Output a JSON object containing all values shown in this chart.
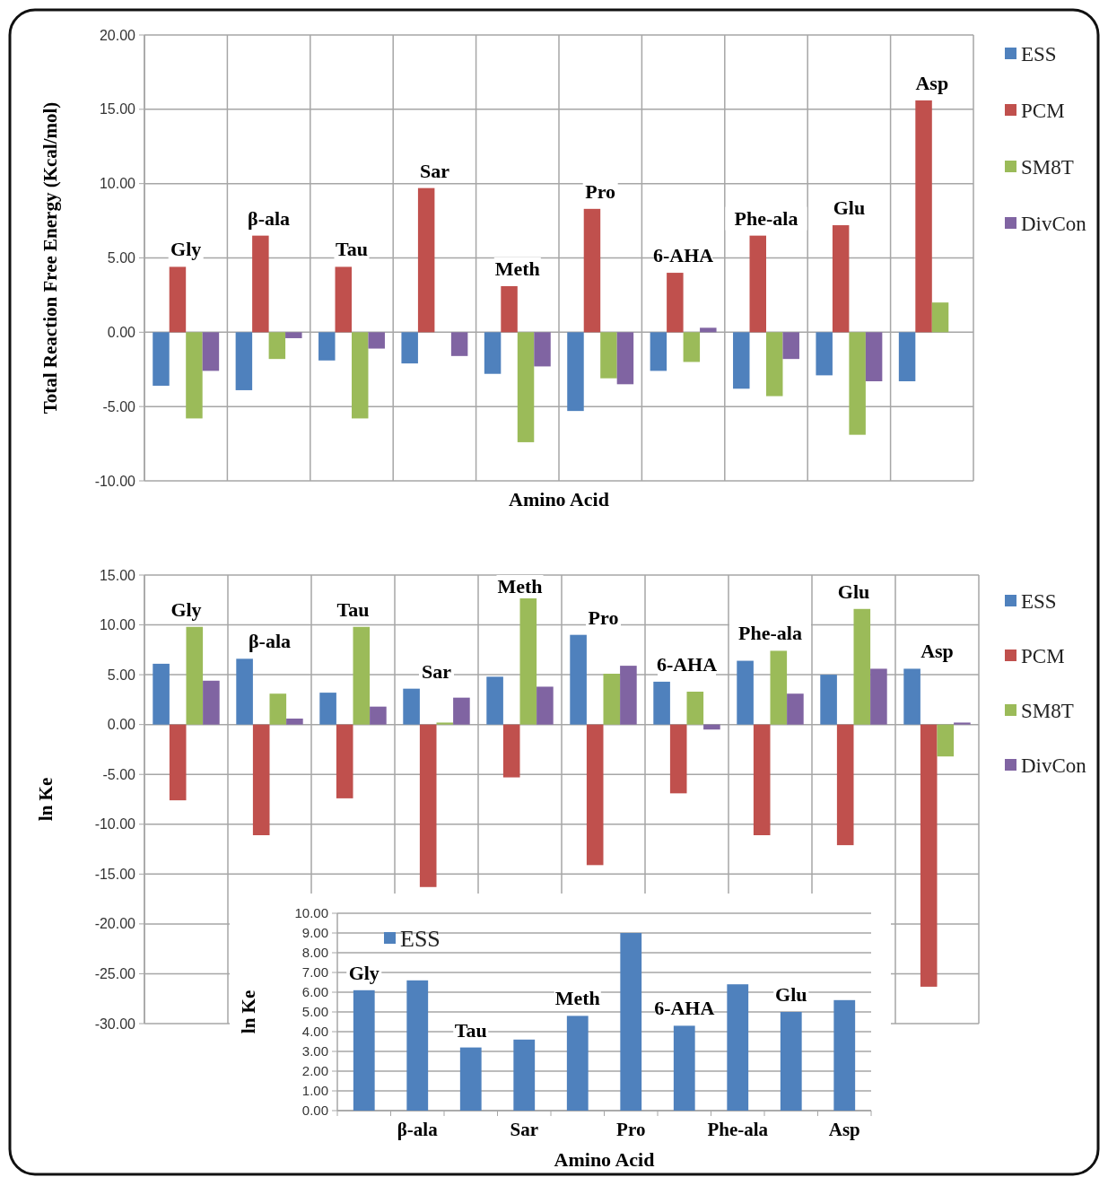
{
  "chart_data": [
    {
      "type": "bar",
      "xlabel": "Amino Acid",
      "ylabel": "Total Reaction Free Energy (Kcal/mol)",
      "categories": [
        "Gly",
        "β-ala",
        "Tau",
        "Sar",
        "Meth",
        "Pro",
        "6-AHA",
        "Phe-ala",
        "Glu",
        "Asp"
      ],
      "series": [
        {
          "name": "ESS",
          "color": "#4f81bd",
          "values": [
            -3.6,
            -3.9,
            -1.9,
            -2.1,
            -2.8,
            -5.3,
            -2.6,
            -3.8,
            -2.9,
            -3.3
          ]
        },
        {
          "name": "PCM",
          "color": "#c0504d",
          "values": [
            4.4,
            6.5,
            4.4,
            9.7,
            3.1,
            8.3,
            4.0,
            6.5,
            7.2,
            15.6
          ]
        },
        {
          "name": "SM8T",
          "color": "#9bbb59",
          "values": [
            -5.8,
            -1.8,
            -5.8,
            0,
            -7.4,
            -3.1,
            -2.0,
            -4.3,
            -6.9,
            2.0
          ]
        },
        {
          "name": "DivCon",
          "color": "#8064a2",
          "values": [
            -2.6,
            -0.4,
            -1.1,
            -1.6,
            -2.3,
            -3.5,
            0.3,
            -1.8,
            -3.3,
            0
          ]
        }
      ],
      "ylim": [
        -10,
        20
      ],
      "yticks": [
        {
          "value": -10,
          "label": "-10.00"
        },
        {
          "value": -5,
          "label": "-5.00"
        },
        {
          "value": 0,
          "label": "0.00"
        },
        {
          "value": 5,
          "label": "5.00"
        },
        {
          "value": 10,
          "label": "10.00"
        },
        {
          "value": 15,
          "label": "15.00"
        },
        {
          "value": 20,
          "label": "20.00"
        }
      ],
      "grid": true,
      "legend": "right"
    },
    {
      "type": "bar",
      "ylabel": "ln Ke",
      "categories": [
        "Gly",
        "β-ala",
        "Tau",
        "Sar",
        "Meth",
        "Pro",
        "6-AHA",
        "Phe-ala",
        "Glu",
        "Asp"
      ],
      "series": [
        {
          "name": "ESS",
          "color": "#4f81bd",
          "values": [
            6.1,
            6.6,
            3.2,
            3.6,
            4.8,
            9.0,
            4.3,
            6.4,
            5.0,
            5.6
          ]
        },
        {
          "name": "PCM",
          "color": "#c0504d",
          "values": [
            -7.6,
            -11.1,
            -7.4,
            -16.3,
            -5.3,
            -14.1,
            -6.9,
            -11.1,
            -12.1,
            -26.3
          ]
        },
        {
          "name": "SM8T",
          "color": "#9bbb59",
          "values": [
            9.8,
            3.1,
            9.8,
            0.2,
            12.7,
            5.1,
            3.3,
            7.4,
            11.6,
            -3.2
          ]
        },
        {
          "name": "DivCon",
          "color": "#8064a2",
          "values": [
            4.4,
            0.6,
            1.8,
            2.7,
            3.8,
            5.9,
            -0.5,
            3.1,
            5.6,
            0.2
          ]
        }
      ],
      "ylim": [
        -30,
        15
      ],
      "yticks": [
        {
          "value": -30,
          "label": "-30.00"
        },
        {
          "value": -25,
          "label": "-25.00"
        },
        {
          "value": -20,
          "label": "-20.00"
        },
        {
          "value": -15,
          "label": "-15.00"
        },
        {
          "value": -10,
          "label": "-10.00"
        },
        {
          "value": -5,
          "label": "-5.00"
        },
        {
          "value": 0,
          "label": "0.00"
        },
        {
          "value": 5,
          "label": "5.00"
        },
        {
          "value": 10,
          "label": "10.00"
        },
        {
          "value": 15,
          "label": "15.00"
        }
      ],
      "grid": true,
      "legend": "right"
    },
    {
      "type": "bar",
      "xlabel": "Amino Acid",
      "ylabel": "ln Ke",
      "categories": [
        "Gly",
        "β-ala",
        "Tau",
        "Sar",
        "Meth",
        "Pro",
        "6-AHA",
        "Phe-ala",
        "Glu",
        "Asp"
      ],
      "series": [
        {
          "name": "ESS",
          "color": "#4f81bd",
          "values": [
            6.1,
            6.6,
            3.2,
            3.6,
            4.8,
            9.0,
            4.3,
            6.4,
            5.0,
            5.6
          ]
        }
      ],
      "ylim": [
        0,
        10
      ],
      "yticks": [
        {
          "value": 0,
          "label": "0.00"
        },
        {
          "value": 1,
          "label": "1.00"
        },
        {
          "value": 2,
          "label": "2.00"
        },
        {
          "value": 3,
          "label": "3.00"
        },
        {
          "value": 4,
          "label": "4.00"
        },
        {
          "value": 5,
          "label": "5.00"
        },
        {
          "value": 6,
          "label": "6.00"
        },
        {
          "value": 7,
          "label": "7.00"
        },
        {
          "value": 8,
          "label": "8.00"
        },
        {
          "value": 9,
          "label": "9.00"
        },
        {
          "value": 10,
          "label": "10.00"
        }
      ],
      "grid": "y",
      "legend": "top left"
    }
  ]
}
